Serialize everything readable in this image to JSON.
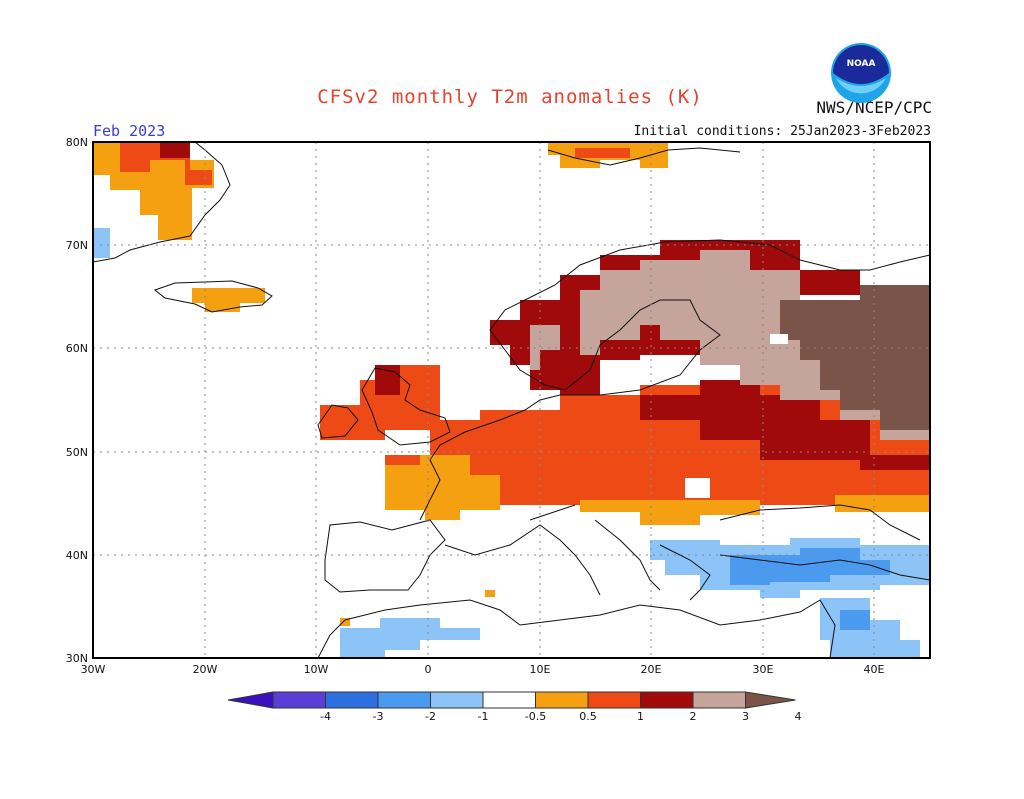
{
  "header": {
    "title": "CFSv2 monthly T2m anomalies (K)",
    "agency": "NWS/NCEP/CPC",
    "logo_text": "NOAA",
    "month": "Feb 2023",
    "initial_conditions": "Initial conditions: 25Jan2023-3Feb2023"
  },
  "map": {
    "projection": "lat-lon",
    "lon_range": [
      -30,
      45
    ],
    "lat_range": [
      30,
      80
    ],
    "grid": "dotted",
    "lat_ticks": [
      "80N",
      "70N",
      "60N",
      "50N",
      "40N",
      "30N"
    ],
    "lon_ticks": [
      "30W",
      "20W",
      "10W",
      "0",
      "10E",
      "20E",
      "30E",
      "40E"
    ]
  },
  "colorbar": {
    "labels": [
      "-4",
      "-3",
      "-2",
      "-1",
      "-0.5",
      "0.5",
      "1",
      "2",
      "3",
      "4"
    ],
    "colors": [
      "#3a10c0",
      "#5a3fd6",
      "#2e6fe0",
      "#4a9bf0",
      "#8cc4f7",
      "#ffffff",
      "#f5a010",
      "#ee4a16",
      "#a00a0a",
      "#c5a49c",
      "#7a5448"
    ]
  },
  "anomaly_regions": [
    {
      "region": "Iceland",
      "category": "0.5-1"
    },
    {
      "region": "Greenland east coast",
      "category": "0.5-1 / 1-2"
    },
    {
      "region": "British Isles",
      "category": "1-2"
    },
    {
      "region": "France / Central Europe",
      "category": "1-2"
    },
    {
      "region": "Norway coast / Sweden",
      "category": "2-3"
    },
    {
      "region": "Finland / NW Russia",
      "category": "3-4"
    },
    {
      "region": "Central Russia",
      "category": ">4"
    },
    {
      "region": "Eastern Europe / Ukraine",
      "category": "2-3"
    },
    {
      "region": "Turkey / Aegean",
      "category": "-1 to -0.5"
    },
    {
      "region": "North Africa",
      "category": "-1 to -0.5"
    }
  ]
}
